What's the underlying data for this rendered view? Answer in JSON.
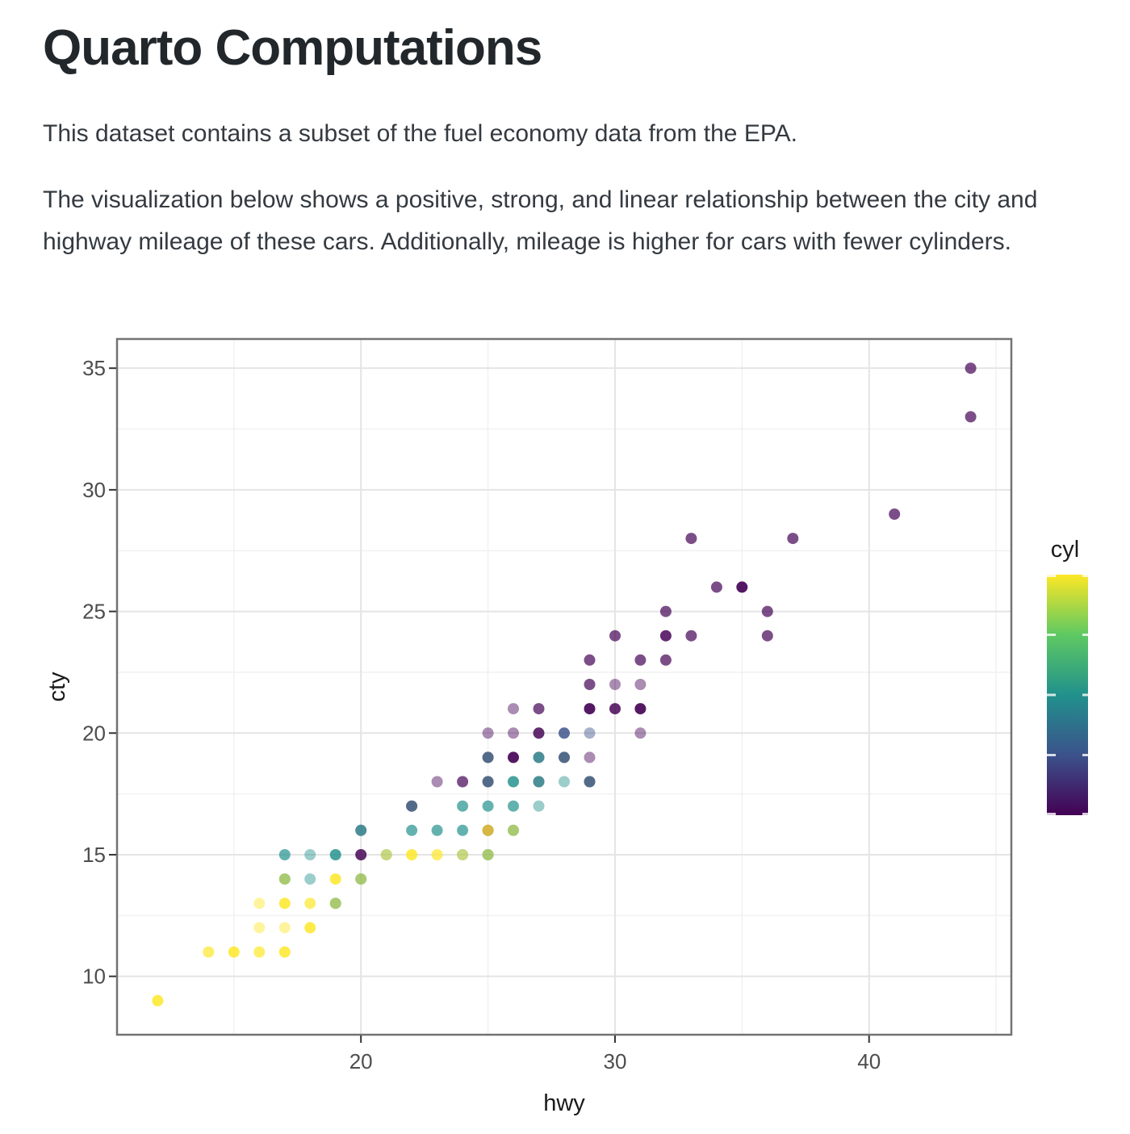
{
  "page": {
    "title": "Quarto Computations",
    "paragraph1": "This dataset contains a subset of the fuel economy data from the EPA.",
    "paragraph2": "The visualization below shows a positive, strong, and linear relationship between the city and highway mileage of these cars. Additionally, mileage is higher for cars with fewer cylinders."
  },
  "chart_data": {
    "type": "scatter",
    "xlabel": "hwy",
    "ylabel": "cty",
    "xlim": [
      10.4,
      45.6
    ],
    "ylim": [
      7.6,
      36.2
    ],
    "x_ticks": [
      20,
      30,
      40
    ],
    "y_ticks": [
      10,
      15,
      20,
      25,
      30,
      35
    ],
    "x_minor": [
      15,
      25,
      35,
      45
    ],
    "y_minor": [
      12.5,
      17.5,
      22.5,
      27.5,
      32.5
    ],
    "grid": "on",
    "point_alpha": 0.45,
    "legend": {
      "title": "cyl",
      "position": "right",
      "min": 4,
      "max": 8,
      "ticks": [
        4,
        5,
        6,
        7,
        8
      ],
      "gradient_top_to_bottom": [
        "#FDE725",
        "#5EC962",
        "#21918C",
        "#3B528B",
        "#440154"
      ]
    },
    "cyl_colors": {
      "4": "#440154",
      "5": "#3B528B",
      "6": "#21918C",
      "7": "#5EC962",
      "8": "#FDE725"
    },
    "points_format": [
      "hwy",
      "cty",
      "cyl",
      "overplot_n"
    ],
    "points": [
      [
        44,
        35,
        4,
        2
      ],
      [
        44,
        33,
        4,
        2
      ],
      [
        41,
        29,
        4,
        2
      ],
      [
        33,
        28,
        4,
        2
      ],
      [
        37,
        28,
        4,
        2
      ],
      [
        34,
        26,
        4,
        2
      ],
      [
        35,
        26,
        4,
        4
      ],
      [
        32,
        25,
        4,
        2
      ],
      [
        36,
        25,
        4,
        2
      ],
      [
        30,
        24,
        4,
        2
      ],
      [
        32,
        24,
        4,
        3
      ],
      [
        33,
        24,
        4,
        2
      ],
      [
        36,
        24,
        4,
        2
      ],
      [
        29,
        23,
        4,
        2
      ],
      [
        31,
        23,
        4,
        2
      ],
      [
        32,
        23,
        4,
        2
      ],
      [
        29,
        22,
        4,
        2
      ],
      [
        30,
        22,
        4,
        1
      ],
      [
        31,
        22,
        4,
        1
      ],
      [
        26,
        21,
        4,
        1
      ],
      [
        27,
        21,
        4,
        2
      ],
      [
        29,
        21,
        4,
        4
      ],
      [
        30,
        21,
        4,
        3
      ],
      [
        31,
        21,
        4,
        4
      ],
      [
        25,
        20,
        4,
        1
      ],
      [
        26,
        20,
        4,
        1
      ],
      [
        27,
        20,
        4,
        3
      ],
      [
        28,
        20,
        5,
        3
      ],
      [
        29,
        20,
        5,
        1
      ],
      [
        31,
        20,
        4,
        1
      ],
      [
        25,
        19,
        4,
        2
      ],
      [
        25,
        19,
        6,
        1
      ],
      [
        26,
        19,
        4,
        4
      ],
      [
        27,
        19,
        4,
        1
      ],
      [
        27,
        19,
        6,
        2
      ],
      [
        28,
        19,
        4,
        2
      ],
      [
        28,
        19,
        6,
        1
      ],
      [
        29,
        19,
        4,
        1
      ],
      [
        23,
        18,
        4,
        1
      ],
      [
        24,
        18,
        4,
        2
      ],
      [
        25,
        18,
        4,
        2
      ],
      [
        25,
        18,
        6,
        1
      ],
      [
        26,
        18,
        6,
        3
      ],
      [
        27,
        18,
        4,
        1
      ],
      [
        27,
        18,
        6,
        2
      ],
      [
        28,
        18,
        6,
        1
      ],
      [
        29,
        18,
        4,
        2
      ],
      [
        29,
        18,
        6,
        1
      ],
      [
        22,
        17,
        4,
        2
      ],
      [
        22,
        17,
        6,
        1
      ],
      [
        24,
        17,
        6,
        2
      ],
      [
        25,
        17,
        6,
        2
      ],
      [
        26,
        17,
        6,
        2
      ],
      [
        27,
        17,
        6,
        1
      ],
      [
        20,
        16,
        4,
        1
      ],
      [
        20,
        16,
        6,
        2
      ],
      [
        22,
        16,
        6,
        2
      ],
      [
        23,
        16,
        6,
        2
      ],
      [
        24,
        16,
        6,
        2
      ],
      [
        25,
        16,
        4,
        2
      ],
      [
        25,
        16,
        8,
        2
      ],
      [
        26,
        16,
        6,
        2
      ],
      [
        26,
        16,
        8,
        1
      ],
      [
        17,
        15,
        6,
        2
      ],
      [
        18,
        15,
        6,
        1
      ],
      [
        19,
        15,
        6,
        3
      ],
      [
        20,
        15,
        4,
        3
      ],
      [
        21,
        15,
        6,
        1
      ],
      [
        21,
        15,
        8,
        1
      ],
      [
        22,
        15,
        8,
        3
      ],
      [
        23,
        15,
        8,
        2
      ],
      [
        24,
        15,
        6,
        1
      ],
      [
        24,
        15,
        8,
        1
      ],
      [
        25,
        15,
        6,
        2
      ],
      [
        25,
        15,
        8,
        1
      ],
      [
        17,
        14,
        6,
        2
      ],
      [
        17,
        14,
        8,
        1
      ],
      [
        18,
        14,
        6,
        1
      ],
      [
        19,
        14,
        8,
        3
      ],
      [
        20,
        14,
        6,
        2
      ],
      [
        20,
        14,
        8,
        1
      ],
      [
        16,
        13,
        8,
        1
      ],
      [
        17,
        13,
        8,
        3
      ],
      [
        18,
        13,
        8,
        2
      ],
      [
        19,
        13,
        6,
        2
      ],
      [
        19,
        13,
        8,
        1
      ],
      [
        16,
        12,
        8,
        1
      ],
      [
        17,
        12,
        8,
        1
      ],
      [
        18,
        12,
        8,
        3
      ],
      [
        14,
        11,
        8,
        2
      ],
      [
        15,
        11,
        8,
        3
      ],
      [
        16,
        11,
        8,
        2
      ],
      [
        17,
        11,
        8,
        3
      ],
      [
        12,
        9,
        8,
        3
      ]
    ]
  },
  "theme": {
    "panel_border": "#737373",
    "grid_major": "#e4e4e4",
    "grid_minor": "#f1f1f1",
    "tick_mark": "#333333",
    "tick_label": "#4d4d4d",
    "axis_title": "#1a1a1a",
    "background": "#ffffff"
  }
}
